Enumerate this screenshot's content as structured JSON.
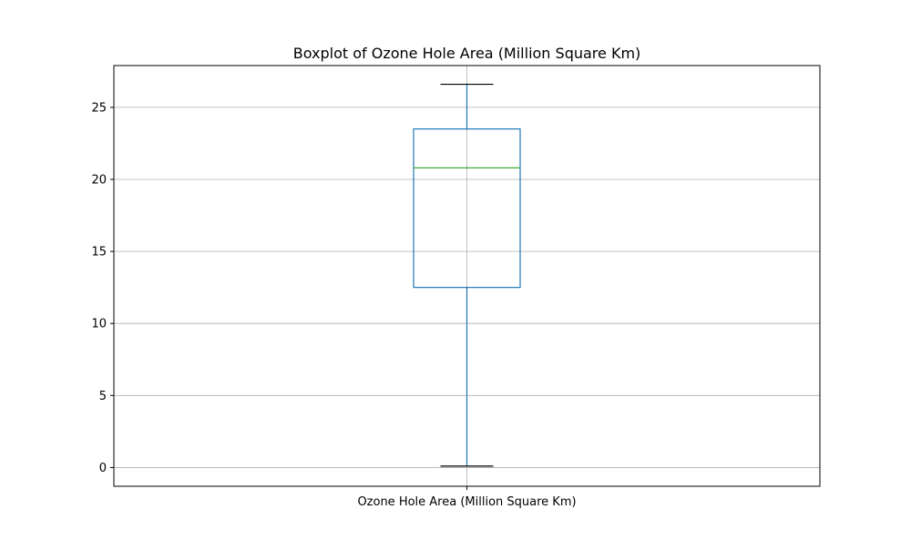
{
  "chart_data": {
    "type": "box",
    "title": "Boxplot of Ozone Hole Area (Million Square Km)",
    "xlabel": "",
    "ylabel": "",
    "categories": [
      "Ozone Hole Area (Million Square Km)"
    ],
    "boxes": [
      {
        "category": "Ozone Hole Area (Million Square Km)",
        "whisker_low": 0.1,
        "q1": 12.5,
        "median": 20.8,
        "q3": 23.5,
        "whisker_high": 26.6
      }
    ],
    "ylim": [
      -1.3,
      27.9
    ],
    "yticks": [
      0,
      5,
      10,
      15,
      20,
      25
    ],
    "grid": true,
    "colors": {
      "box": "#1f77b4",
      "median": "#2ca02c",
      "caps": "#000000",
      "grid": "#b0b0b0",
      "axes": "#000000"
    }
  }
}
